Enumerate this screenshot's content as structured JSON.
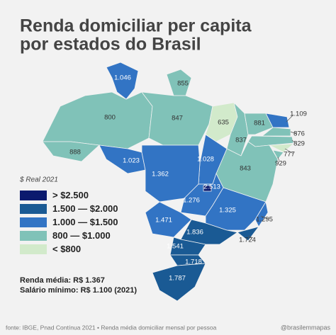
{
  "header": {
    "title": [
      "Renda domiciliar per capita",
      "por estados do Brasil"
    ]
  },
  "legend": {
    "title": "$ Real 2021",
    "items": [
      {
        "label": "> $2.500",
        "color": "#0b1a6e"
      },
      {
        "label": "1.500 — $2.000",
        "color": "#1a5a94"
      },
      {
        "label": "1.000 — $1.500",
        "color": "#3274c4"
      },
      {
        "label": "800 — $1.000",
        "color": "#80c2b8"
      },
      {
        "label": "< $800",
        "color": "#d2eacb"
      }
    ]
  },
  "states": [
    {
      "label": "1.046",
      "color": "#3274c4"
    },
    {
      "label": "855",
      "color": "#80c2b8"
    },
    {
      "label": "800",
      "color": "#80c2b8"
    },
    {
      "label": "888",
      "color": "#80c2b8"
    },
    {
      "label": "847",
      "color": "#80c2b8"
    },
    {
      "label": "635",
      "color": "#d2eacb"
    },
    {
      "label": "837",
      "color": "#80c2b8"
    },
    {
      "label": "881",
      "color": "#80c2b8"
    },
    {
      "label": "1.109",
      "color": "#3274c4"
    },
    {
      "label": "876",
      "color": "#80c2b8"
    },
    {
      "label": "829",
      "color": "#80c2b8"
    },
    {
      "label": "777",
      "color": "#d2eacb"
    },
    {
      "label": "929",
      "color": "#80c2b8"
    },
    {
      "label": "843",
      "color": "#80c2b8"
    },
    {
      "label": "1.028",
      "color": "#3274c4"
    },
    {
      "label": "1.023",
      "color": "#3274c4"
    },
    {
      "label": "1.362",
      "color": "#3274c4"
    },
    {
      "label": "1.276",
      "color": "#3274c4"
    },
    {
      "label": "2.513",
      "color": "#0b1a6e"
    },
    {
      "label": "1.471",
      "color": "#3274c4"
    },
    {
      "label": "1.325",
      "color": "#3274c4"
    },
    {
      "label": "1.295",
      "color": "#3274c4"
    },
    {
      "label": "1.724",
      "color": "#1a5a94"
    },
    {
      "label": "1.836",
      "color": "#1a5a94"
    },
    {
      "label": "1.541",
      "color": "#1a5a94"
    },
    {
      "label": "1.718",
      "color": "#1a5a94"
    },
    {
      "label": "1.787",
      "color": "#1a5a94"
    }
  ],
  "stats": [
    "Renda média: R$ 1.367",
    "Salário mínimo: R$ 1.100 (2021)"
  ],
  "footer": {
    "source": "fonte: IBGE, Pnad Contínua 2021 • Renda média domiciliar mensal por pessoa",
    "handle": "@brasilemmapas"
  }
}
